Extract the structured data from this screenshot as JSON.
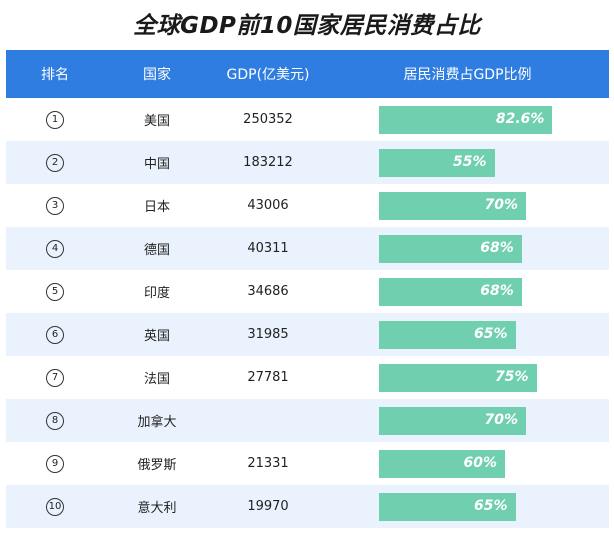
{
  "title": "全球GDP前10国家居民消费占比",
  "headers": [
    "排名",
    "国家",
    "GDP(亿美元)",
    "居民消费占GDP比例"
  ],
  "chart_data": {
    "type": "table",
    "title": "全球GDP前10国家居民消费占比",
    "columns": [
      "排名",
      "国家",
      "GDP(亿美元)",
      "居民消费占GDP比例"
    ],
    "rows": [
      {
        "rank": "①",
        "country": "美国",
        "gdp": "250352",
        "share": 82.6,
        "share_label": "82.6%"
      },
      {
        "rank": "②",
        "country": "中国",
        "gdp": "183212",
        "share": 55,
        "share_label": "55%"
      },
      {
        "rank": "③",
        "country": "日本",
        "gdp": "43006",
        "share": 70,
        "share_label": "70%"
      },
      {
        "rank": "④",
        "country": "德国",
        "gdp": "40311",
        "share": 68,
        "share_label": "68%"
      },
      {
        "rank": "⑤",
        "country": "印度",
        "gdp": "34686",
        "share": 68,
        "share_label": "68%"
      },
      {
        "rank": "⑥",
        "country": "英国",
        "gdp": "31985",
        "share": 65,
        "share_label": "65%"
      },
      {
        "rank": "⑦",
        "country": "法国",
        "gdp": "27781",
        "share": 75,
        "share_label": "75%"
      },
      {
        "rank": "⑧",
        "country": "加拿大",
        "gdp": "",
        "share": 70,
        "share_label": "70%"
      },
      {
        "rank": "⑨",
        "country": "俄罗斯",
        "gdp": "21331",
        "share": 60,
        "share_label": "60%"
      },
      {
        "rank": "⑩",
        "country": "意大利",
        "gdp": "19970",
        "share": 65,
        "share_label": "65%"
      }
    ]
  },
  "colors": {
    "header": "#2f7de0",
    "bar": "#6fcfaf",
    "alt_row": "#eaf3fd"
  }
}
